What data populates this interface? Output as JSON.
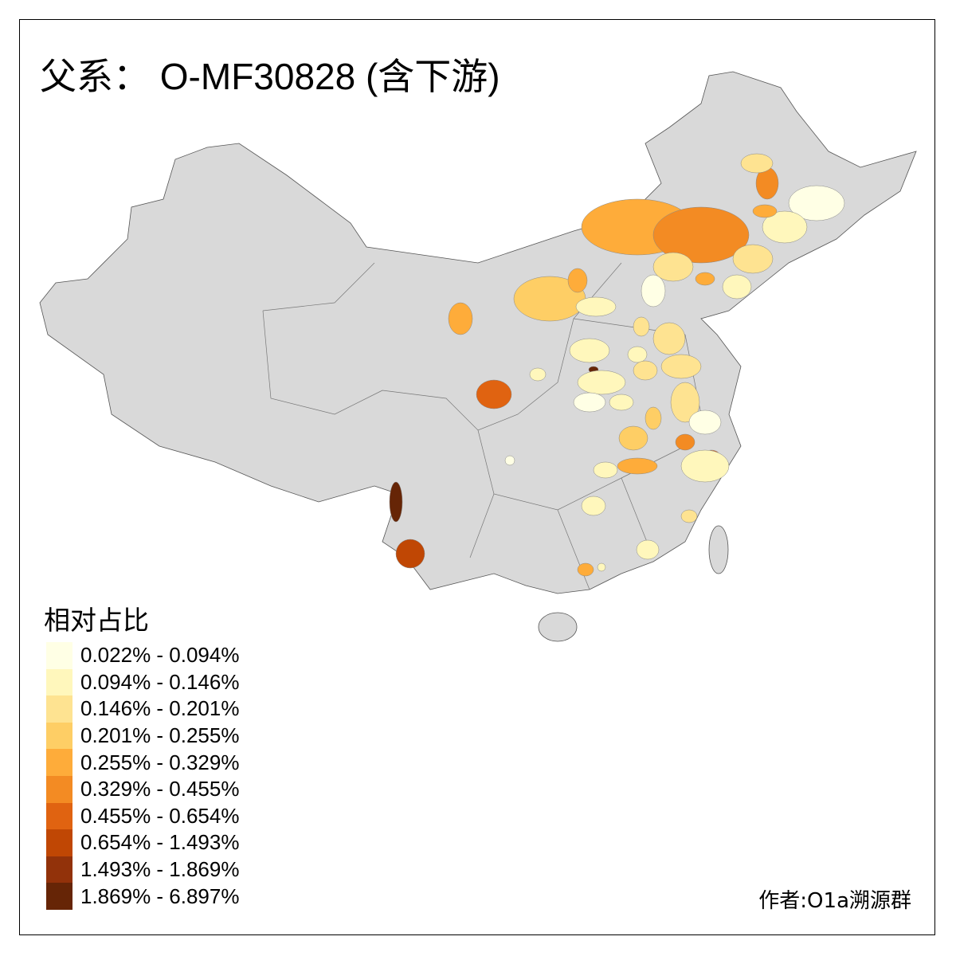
{
  "title": "父系： O-MF30828 (含下游)",
  "legend": {
    "title": "相对占比",
    "items": [
      {
        "label": "0.022% - 0.094%",
        "color": "#FFFFE5"
      },
      {
        "label": "0.094% - 0.146%",
        "color": "#FFF7BC"
      },
      {
        "label": "0.146% - 0.201%",
        "color": "#FEE391"
      },
      {
        "label": "0.201% - 0.255%",
        "color": "#FECE65"
      },
      {
        "label": "0.255% - 0.329%",
        "color": "#FEAC3A"
      },
      {
        "label": "0.329% - 0.455%",
        "color": "#F38B23"
      },
      {
        "label": "0.455% - 0.654%",
        "color": "#E06311"
      },
      {
        "label": "0.654% - 1.493%",
        "color": "#C04704"
      },
      {
        "label": "1.493% - 1.869%",
        "color": "#92320A"
      },
      {
        "label": "1.869% - 6.897%",
        "color": "#662506"
      }
    ]
  },
  "base_color": "#D9D9D9",
  "credit": "作者:O1a溯源群"
}
